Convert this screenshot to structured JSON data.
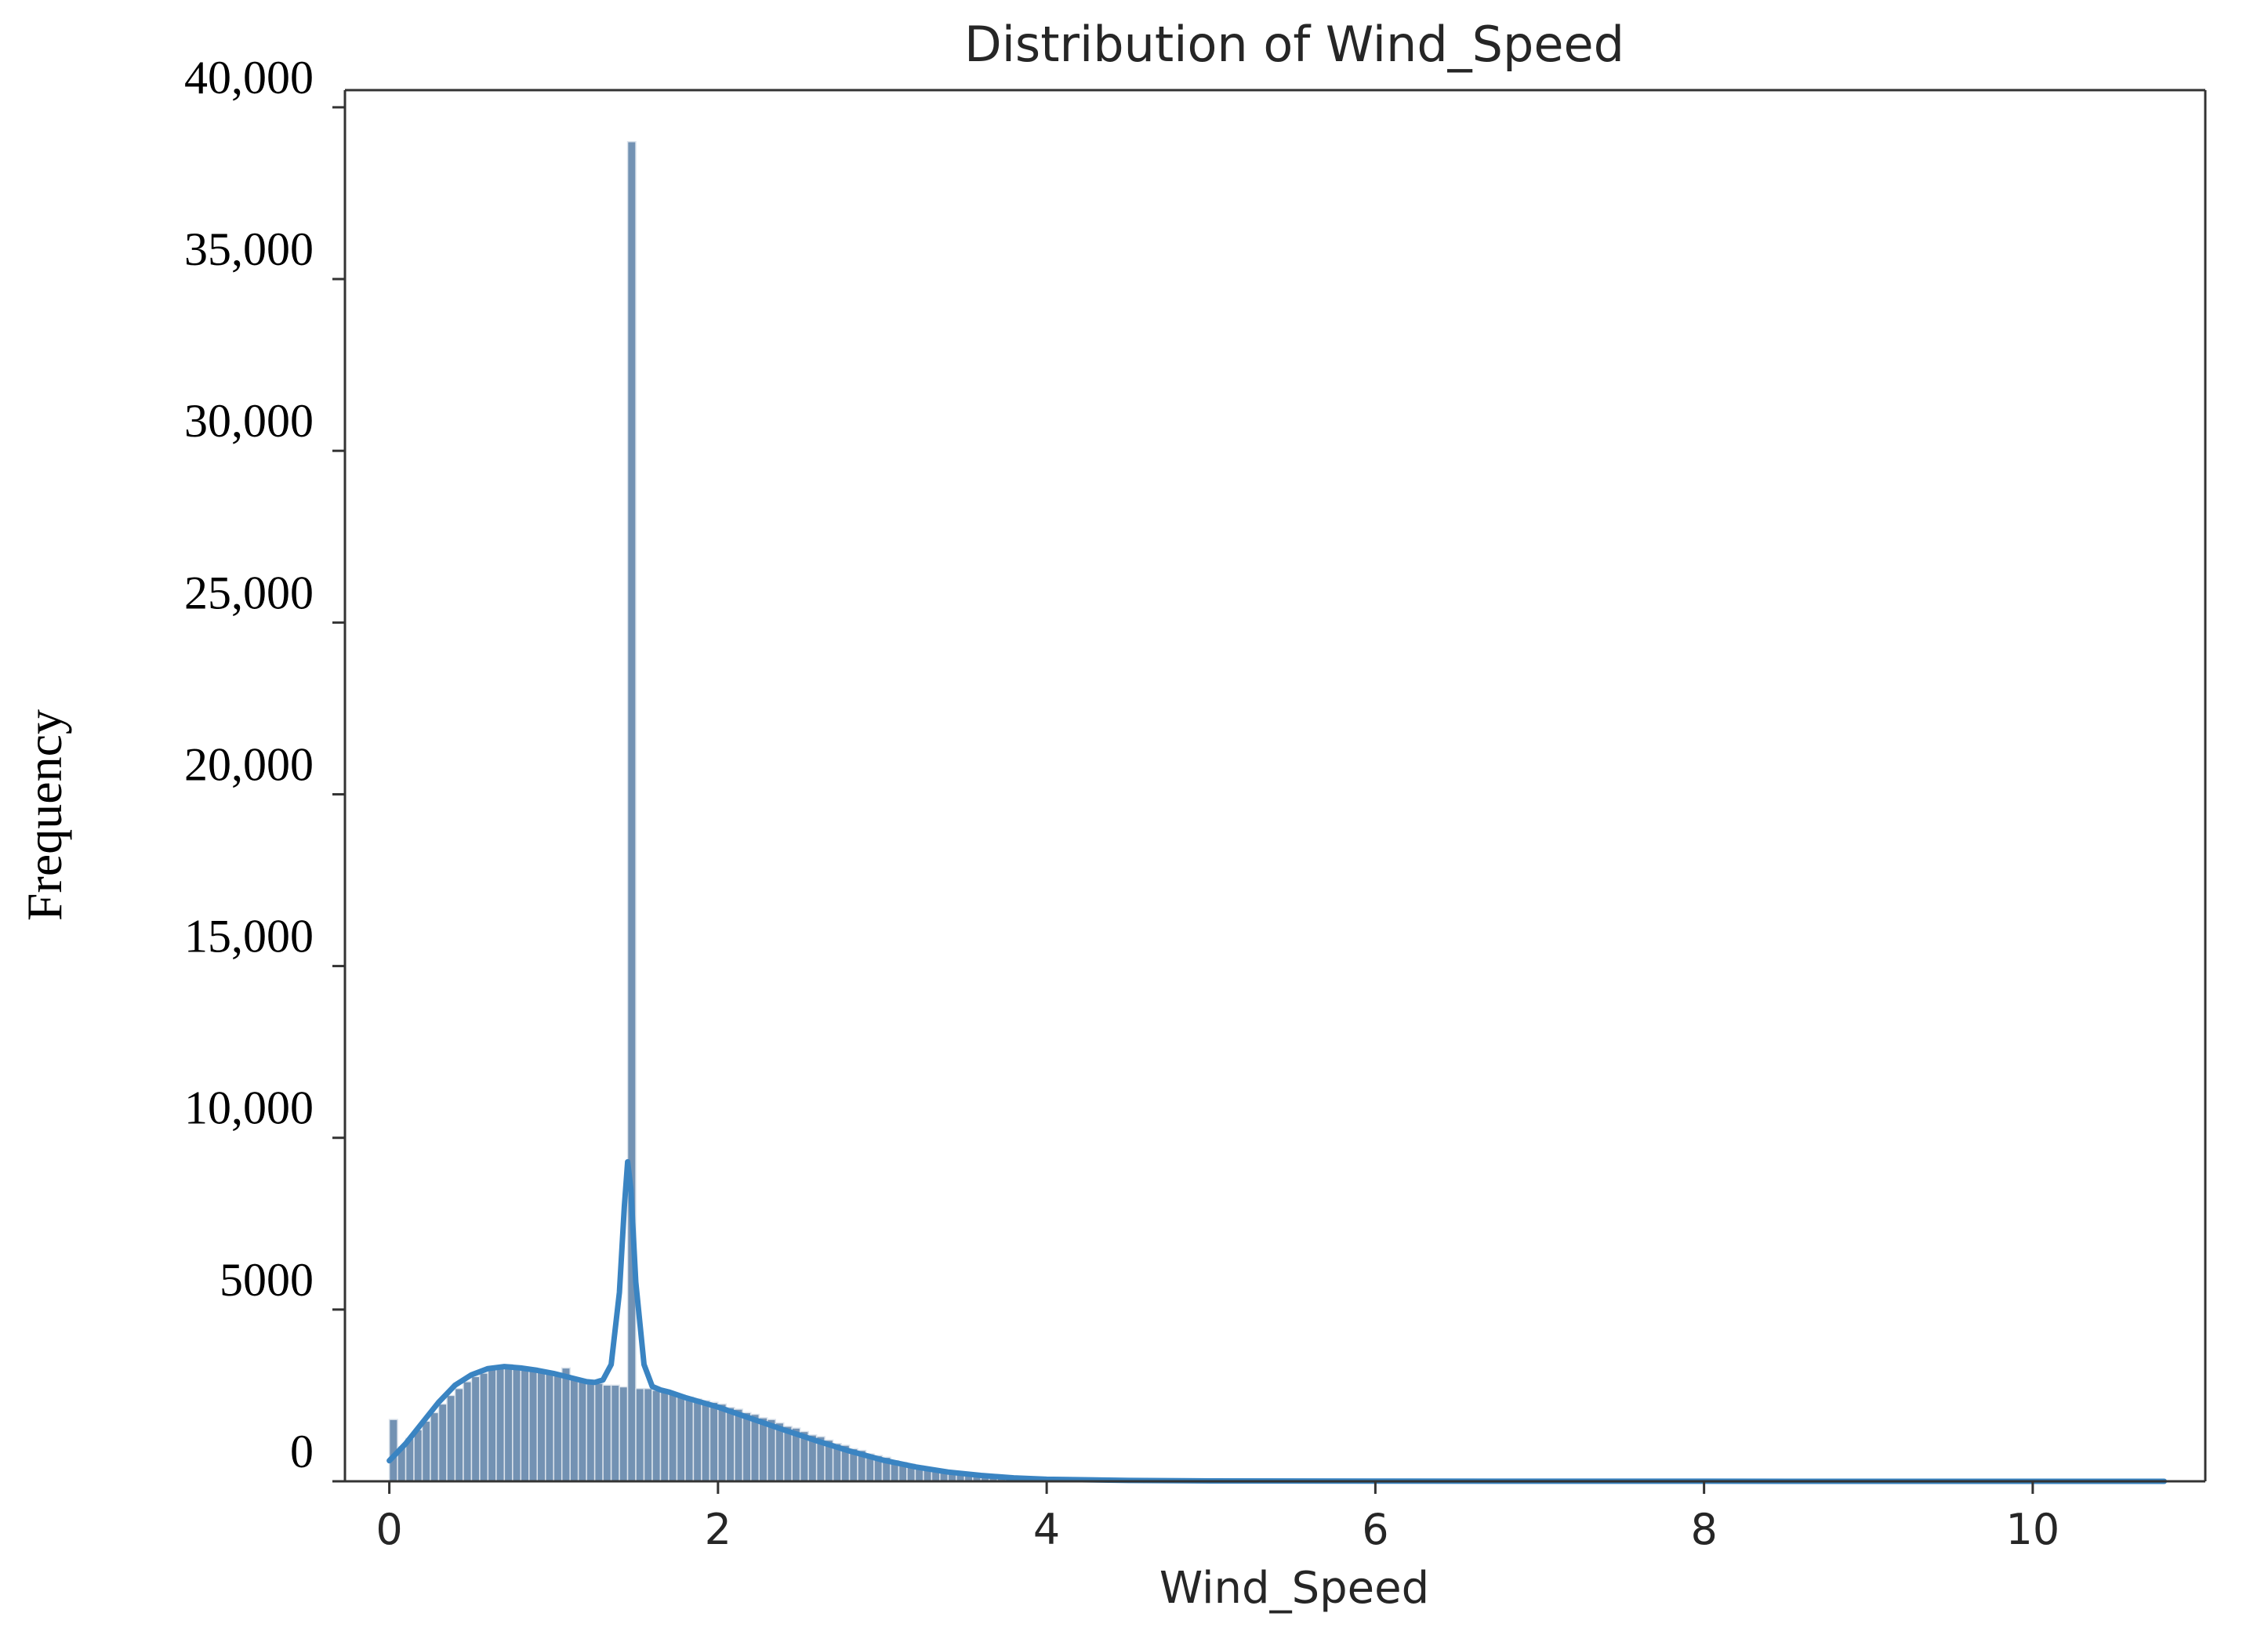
{
  "chart_data": {
    "type": "bar",
    "title": "Distribution of Wind_Speed",
    "xlabel": "Wind_Speed",
    "ylabel": "Frequency",
    "xlim": [
      -0.27,
      11.05
    ],
    "ylim": [
      0,
      40500
    ],
    "xticks": [
      0,
      2,
      4,
      6,
      8,
      10
    ],
    "xtick_labels": [
      "0",
      "2",
      "4",
      "6",
      "8",
      "10"
    ],
    "yticks": [
      0,
      5000,
      10000,
      15000,
      20000,
      25000,
      30000,
      35000,
      40000
    ],
    "ytick_labels": [
      "0",
      "5000",
      "10,000",
      "15,000",
      "20,000",
      "25,000",
      "30,000",
      "35,000",
      "40,000"
    ],
    "grid": false,
    "bin_width": 0.05,
    "series": [
      {
        "kind": "histogram",
        "bins": [
          {
            "x": 0.0,
            "count": 1800
          },
          {
            "x": 0.05,
            "count": 1000
          },
          {
            "x": 0.1,
            "count": 1250
          },
          {
            "x": 0.15,
            "count": 1500
          },
          {
            "x": 0.2,
            "count": 1750
          },
          {
            "x": 0.25,
            "count": 2000
          },
          {
            "x": 0.3,
            "count": 2250
          },
          {
            "x": 0.35,
            "count": 2500
          },
          {
            "x": 0.4,
            "count": 2700
          },
          {
            "x": 0.45,
            "count": 2900
          },
          {
            "x": 0.5,
            "count": 3050
          },
          {
            "x": 0.55,
            "count": 3150
          },
          {
            "x": 0.6,
            "count": 3250
          },
          {
            "x": 0.65,
            "count": 3300
          },
          {
            "x": 0.7,
            "count": 3400
          },
          {
            "x": 0.75,
            "count": 3300
          },
          {
            "x": 0.8,
            "count": 3250
          },
          {
            "x": 0.85,
            "count": 3250
          },
          {
            "x": 0.9,
            "count": 3200
          },
          {
            "x": 0.95,
            "count": 3150
          },
          {
            "x": 1.0,
            "count": 3100
          },
          {
            "x": 1.05,
            "count": 3300
          },
          {
            "x": 1.1,
            "count": 3000
          },
          {
            "x": 1.15,
            "count": 2950
          },
          {
            "x": 1.2,
            "count": 2900
          },
          {
            "x": 1.25,
            "count": 2850
          },
          {
            "x": 1.3,
            "count": 2800
          },
          {
            "x": 1.35,
            "count": 2800
          },
          {
            "x": 1.4,
            "count": 2750
          },
          {
            "x": 1.45,
            "count": 39000
          },
          {
            "x": 1.5,
            "count": 2700
          },
          {
            "x": 1.55,
            "count": 2700
          },
          {
            "x": 1.6,
            "count": 2650
          },
          {
            "x": 1.65,
            "count": 2600
          },
          {
            "x": 1.7,
            "count": 2550
          },
          {
            "x": 1.75,
            "count": 2500
          },
          {
            "x": 1.8,
            "count": 2450
          },
          {
            "x": 1.85,
            "count": 2400
          },
          {
            "x": 1.9,
            "count": 2350
          },
          {
            "x": 1.95,
            "count": 2300
          },
          {
            "x": 2.0,
            "count": 2250
          },
          {
            "x": 2.05,
            "count": 2150
          },
          {
            "x": 2.1,
            "count": 2100
          },
          {
            "x": 2.15,
            "count": 2000
          },
          {
            "x": 2.2,
            "count": 1950
          },
          {
            "x": 2.25,
            "count": 1850
          },
          {
            "x": 2.3,
            "count": 1800
          },
          {
            "x": 2.35,
            "count": 1700
          },
          {
            "x": 2.4,
            "count": 1600
          },
          {
            "x": 2.45,
            "count": 1550
          },
          {
            "x": 2.5,
            "count": 1450
          },
          {
            "x": 2.55,
            "count": 1350
          },
          {
            "x": 2.6,
            "count": 1300
          },
          {
            "x": 2.65,
            "count": 1200
          },
          {
            "x": 2.7,
            "count": 1100
          },
          {
            "x": 2.75,
            "count": 1050
          },
          {
            "x": 2.8,
            "count": 950
          },
          {
            "x": 2.85,
            "count": 900
          },
          {
            "x": 2.9,
            "count": 800
          },
          {
            "x": 2.95,
            "count": 750
          },
          {
            "x": 3.0,
            "count": 700
          },
          {
            "x": 3.05,
            "count": 600
          },
          {
            "x": 3.1,
            "count": 550
          },
          {
            "x": 3.15,
            "count": 500
          },
          {
            "x": 3.2,
            "count": 450
          },
          {
            "x": 3.25,
            "count": 400
          },
          {
            "x": 3.3,
            "count": 350
          },
          {
            "x": 3.35,
            "count": 320
          },
          {
            "x": 3.4,
            "count": 280
          },
          {
            "x": 3.45,
            "count": 250
          },
          {
            "x": 3.5,
            "count": 220
          },
          {
            "x": 3.55,
            "count": 190
          },
          {
            "x": 3.6,
            "count": 170
          },
          {
            "x": 3.65,
            "count": 150
          },
          {
            "x": 3.7,
            "count": 130
          },
          {
            "x": 3.75,
            "count": 110
          },
          {
            "x": 3.8,
            "count": 100
          },
          {
            "x": 3.85,
            "count": 90
          },
          {
            "x": 3.9,
            "count": 80
          },
          {
            "x": 3.95,
            "count": 70
          },
          {
            "x": 4.0,
            "count": 60
          },
          {
            "x": 4.05,
            "count": 55
          },
          {
            "x": 4.1,
            "count": 50
          },
          {
            "x": 4.15,
            "count": 45
          },
          {
            "x": 4.2,
            "count": 40
          },
          {
            "x": 4.25,
            "count": 35
          },
          {
            "x": 4.3,
            "count": 30
          },
          {
            "x": 4.35,
            "count": 28
          },
          {
            "x": 4.4,
            "count": 25
          },
          {
            "x": 4.45,
            "count": 22
          },
          {
            "x": 4.5,
            "count": 20
          }
        ]
      },
      {
        "kind": "kde",
        "x": [
          0.0,
          0.1,
          0.2,
          0.3,
          0.4,
          0.5,
          0.6,
          0.7,
          0.8,
          0.9,
          1.0,
          1.1,
          1.2,
          1.25,
          1.3,
          1.35,
          1.4,
          1.43,
          1.45,
          1.47,
          1.5,
          1.55,
          1.6,
          1.65,
          1.7,
          1.8,
          1.9,
          2.0,
          2.2,
          2.4,
          2.6,
          2.8,
          3.0,
          3.2,
          3.4,
          3.6,
          3.8,
          4.0,
          4.5,
          5.0,
          6.0,
          7.0,
          8.0,
          9.0,
          10.0,
          10.8
        ],
        "y": [
          600,
          1100,
          1700,
          2300,
          2800,
          3100,
          3280,
          3340,
          3300,
          3230,
          3140,
          3020,
          2900,
          2880,
          2950,
          3400,
          5500,
          8000,
          9300,
          8500,
          5800,
          3400,
          2760,
          2660,
          2600,
          2440,
          2300,
          2160,
          1830,
          1500,
          1180,
          880,
          620,
          420,
          270,
          170,
          100,
          60,
          25,
          12,
          5,
          3,
          2,
          1,
          1,
          0
        ]
      }
    ]
  },
  "colors": {
    "bar_fill": "#5b7fa6",
    "bar_edge": "#dde4ec",
    "kde_line": "#3a84c2",
    "axes": "#333333"
  }
}
